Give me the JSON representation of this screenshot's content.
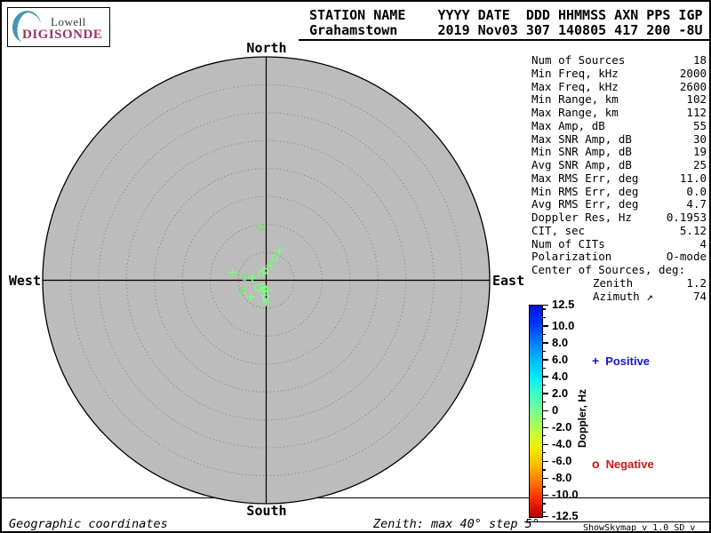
{
  "logo": {
    "name_top": "Lowell",
    "name_bottom": "DIGISONDE",
    "crescent_color": "#4596b4",
    "digisonde_color": "#993366"
  },
  "header": {
    "row1": "STATION NAME    YYYY DATE  DDD HHMMSS AXN PPS IGP",
    "row2": "Grahamstown     2019 Nov03 307 140805 417 200 -8U"
  },
  "stats": {
    "rows": [
      {
        "label": "Num of Sources",
        "value": "18"
      },
      {
        "label": "Min Freq, kHz",
        "value": "2000"
      },
      {
        "label": "Max Freq, kHz",
        "value": "2600"
      },
      {
        "label": "Min Range, km",
        "value": "102"
      },
      {
        "label": "Max Range, km",
        "value": "112"
      },
      {
        "label": "Max Amp, dB",
        "value": "55"
      },
      {
        "label": "Max SNR Amp, dB",
        "value": "30"
      },
      {
        "label": "Min SNR Amp, dB",
        "value": "19"
      },
      {
        "label": "Avg SNR Amp, dB",
        "value": "25"
      },
      {
        "label": "Max RMS Err, deg",
        "value": "11.0"
      },
      {
        "label": "Min RMS Err, deg",
        "value": "0.0"
      },
      {
        "label": "Avg RMS Err, deg",
        "value": "4.7"
      },
      {
        "label": "Doppler Res, Hz",
        "value": "0.1953"
      },
      {
        "label": "CIT, sec",
        "value": "5.12"
      },
      {
        "label": "Num of CITs",
        "value": "4"
      },
      {
        "label": "Polarization",
        "value": "O-mode"
      },
      {
        "label": "Center of Sources, deg:",
        "value": ""
      },
      {
        "label": "Zenith",
        "value": "1.2",
        "indent": true
      },
      {
        "label": "Azimuth ↗",
        "value": "74",
        "indent": true
      }
    ]
  },
  "compass": {
    "north": "North",
    "south": "South",
    "west": "West",
    "east": "East"
  },
  "legend": {
    "positive_symbol": "+",
    "positive_label": "Positive",
    "positive_color": "#1414cc",
    "negative_symbol": "o",
    "negative_label": "Negative",
    "negative_color": "#cc1414"
  },
  "footer": {
    "coordinates": "Geographic coordinates",
    "zenith_info": "Zenith: max 40°  step 5°",
    "version": "ShowSkymap v 1.0   SD v 5.1"
  },
  "chart_data": {
    "type": "scatter",
    "projection": "polar-skymap",
    "coordinates": "geographic",
    "zenith_max_deg": 40,
    "zenith_step_deg": 5,
    "plot_fill_color": "#bcbcbc",
    "points": [
      {
        "azimuth_deg": 354,
        "zenith_deg": 9.5,
        "polarity": "o",
        "color": "#6fe86f"
      },
      {
        "azimuth_deg": 23,
        "zenith_deg": 5.8,
        "polarity": "+",
        "color": "#7df87d"
      },
      {
        "azimuth_deg": 20,
        "zenith_deg": 4.3,
        "polarity": "o",
        "color": "#7df87d"
      },
      {
        "azimuth_deg": 15,
        "zenith_deg": 2.7,
        "polarity": "+",
        "color": "#7df87d"
      },
      {
        "azimuth_deg": 352,
        "zenith_deg": 1.7,
        "polarity": "o",
        "color": "#8df98d"
      },
      {
        "azimuth_deg": 324,
        "zenith_deg": 1.5,
        "polarity": "o",
        "color": "#7df87d"
      },
      {
        "azimuth_deg": 283,
        "zenith_deg": 6.1,
        "polarity": "+",
        "color": "#7df87d"
      },
      {
        "azimuth_deg": 278,
        "zenith_deg": 3.9,
        "polarity": "o",
        "color": "#6fe86f"
      },
      {
        "azimuth_deg": 279,
        "zenith_deg": 2.5,
        "polarity": "+",
        "color": "#7df87d"
      },
      {
        "azimuth_deg": 205,
        "zenith_deg": 1.3,
        "polarity": "o",
        "color": "#7df87d"
      },
      {
        "azimuth_deg": 188,
        "zenith_deg": 1.7,
        "polarity": "o",
        "color": "#8df98d"
      },
      {
        "azimuth_deg": 173,
        "zenith_deg": 1.8,
        "polarity": "+",
        "color": "#7df87d"
      },
      {
        "azimuth_deg": 198,
        "zenith_deg": 2.3,
        "polarity": "o",
        "color": "#7df87d"
      },
      {
        "azimuth_deg": 247,
        "zenith_deg": 4.7,
        "polarity": "+",
        "color": "#6fe86f"
      },
      {
        "azimuth_deg": 223,
        "zenith_deg": 4.1,
        "polarity": "+",
        "color": "#7df87d"
      },
      {
        "azimuth_deg": 182,
        "zenith_deg": 3.1,
        "polarity": "o",
        "color": "#8df98d"
      },
      {
        "azimuth_deg": 181,
        "zenith_deg": 3.9,
        "polarity": "+",
        "color": "#7df87d"
      },
      {
        "azimuth_deg": 228,
        "zenith_deg": 2.0,
        "polarity": "o",
        "color": "#7df87d"
      }
    ],
    "colorbar": {
      "label": "Doppler, Hz",
      "min": -12.5,
      "max": 12.5,
      "major_ticks": [
        "12.5",
        "10.0",
        "8.0",
        "6.0",
        "4.0",
        "2.0",
        "0",
        "-2.0",
        "-4.0",
        "-6.0",
        "-8.0",
        "-10.0",
        "-12.5"
      ],
      "gradient_colors": [
        "#0014dc",
        "#0032ff",
        "#0078ff",
        "#00b4ff",
        "#00e6ff",
        "#3cffc8",
        "#78ff8c",
        "#b4ff50",
        "#f0f000",
        "#ffbe00",
        "#ff7800",
        "#ff2800",
        "#b40000"
      ]
    }
  }
}
